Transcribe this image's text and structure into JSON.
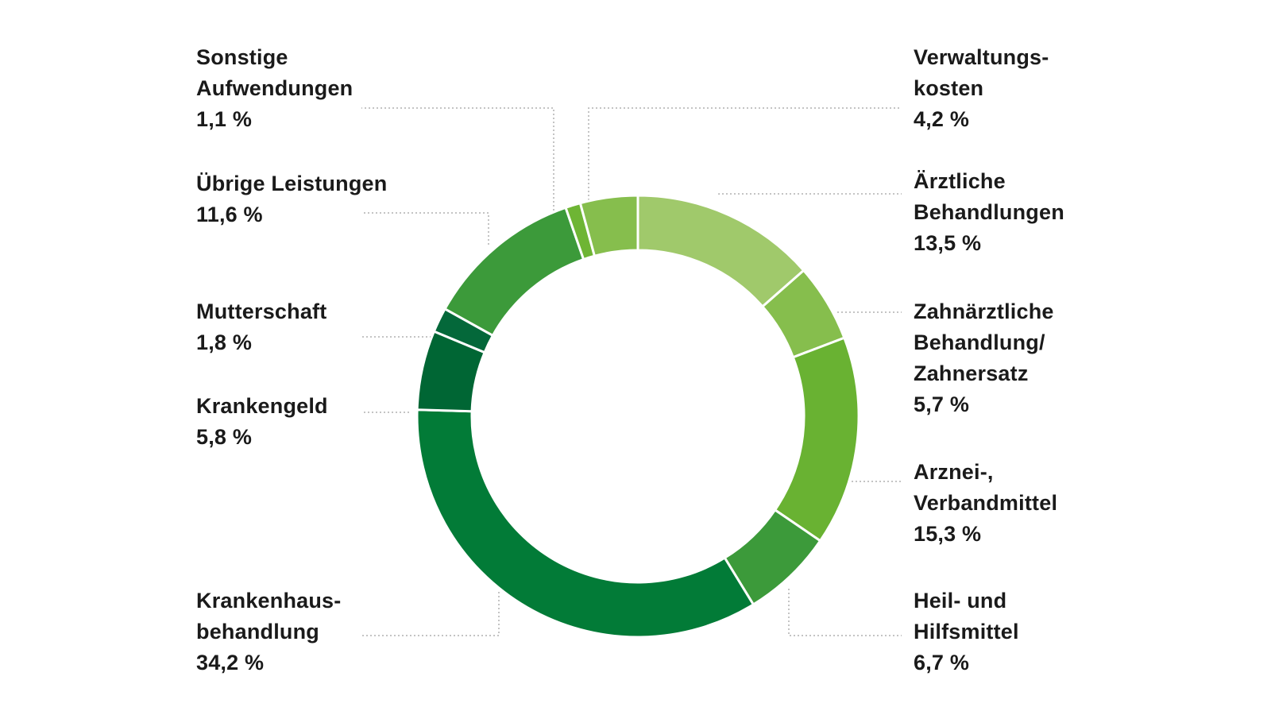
{
  "colors": {
    "slice_1": "#a0c96b",
    "slice_2": "#86be4d",
    "slice_3": "#69b232",
    "slice_4": "#3c9a3a",
    "slice_5": "#027b37",
    "slice_6": "#006634",
    "slice_7": "#04683a",
    "slice_8": "#3c9a3a",
    "slice_9": "#6eb534",
    "slice_10": "#86be4d",
    "leader": "#b0b0b0",
    "text": "#1a1a1a"
  },
  "chart_data": {
    "type": "pie",
    "variant": "donut",
    "unit": "%",
    "start": "top, clockwise",
    "slices": [
      {
        "label": "Ärztliche Behandlungen",
        "value": 13.5,
        "display": "13,5 %",
        "text": "Ärztliche\nBehandlungen",
        "color": "#a0c96b"
      },
      {
        "label": "Zahnärztliche Behandlung/ Zahnersatz",
        "value": 5.7,
        "display": "5,7 %",
        "text": "Zahnärztliche\nBehandlung/\nZahnersatz",
        "color": "#86be4d"
      },
      {
        "label": "Arznei-, Verbandmittel",
        "value": 15.3,
        "display": "15,3 %",
        "text": "Arznei-,\nVerbandmittel",
        "color": "#69b232"
      },
      {
        "label": "Heil- und Hilfsmittel",
        "value": 6.7,
        "display": "6,7 %",
        "text": "Heil- und\nHilfsmittel",
        "color": "#3c9a3a"
      },
      {
        "label": "Krankenhausbehandlung",
        "value": 34.2,
        "display": "34,2 %",
        "text": "Krankenhaus-\nbehandlung",
        "color": "#027b37"
      },
      {
        "label": "Krankengeld",
        "value": 5.8,
        "display": "5,8 %",
        "text": "Krankengeld",
        "color": "#006634"
      },
      {
        "label": "Mutterschaft",
        "value": 1.8,
        "display": "1,8 %",
        "text": "Mutterschaft",
        "color": "#04683a"
      },
      {
        "label": "Übrige Leistungen",
        "value": 11.6,
        "display": "11,6 %",
        "text": "Übrige Leistungen",
        "color": "#3c9a3a"
      },
      {
        "label": "Sonstige Aufwendungen",
        "value": 1.1,
        "display": "1,1 %",
        "text": "Sonstige\nAufwendungen",
        "color": "#6eb534"
      },
      {
        "label": "Verwaltungskosten",
        "value": 4.2,
        "display": "4,2 %",
        "text": "Verwaltungs-\nkosten",
        "color": "#86be4d"
      }
    ]
  }
}
